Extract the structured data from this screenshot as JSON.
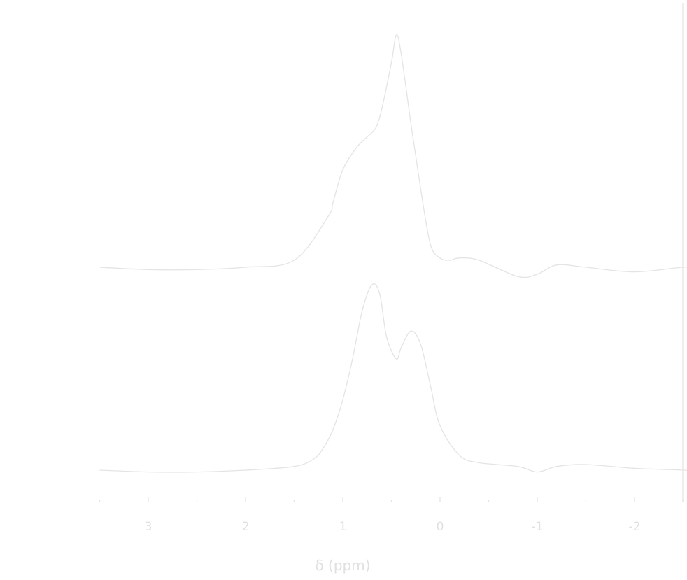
{
  "chart_data": {
    "type": "line",
    "xlabel": "δ (ppm)",
    "ylabel": "",
    "xlim": [
      3.0,
      -3.5
    ],
    "x_reversed": true,
    "x_ticks": [
      3,
      2,
      1,
      0,
      -1,
      -2
    ],
    "x_tick_labels": [
      "3",
      "2",
      "1",
      "0",
      "-1",
      "-2"
    ],
    "x_minor_ticks": [
      3.5,
      2.5,
      1.5,
      0.5,
      -0.5,
      -1.5,
      -2.5,
      -3.0
    ],
    "grid": false,
    "line_color": "#e4e4e4",
    "series": [
      {
        "x": [
          3.5,
          3.0,
          2.5,
          2.0,
          1.5,
          1.15,
          1.1,
          1.0,
          0.85,
          0.7,
          0.65,
          0.6,
          0.5,
          0.45,
          0.4,
          0.3,
          0.2,
          0.1,
          0.0,
          -0.1,
          -0.2,
          -0.4,
          -0.8,
          -1.0,
          -1.2,
          -1.5,
          -2.0,
          -2.5,
          -2.8,
          -3.5
        ],
        "y": [
          0.0,
          -0.01,
          -0.01,
          0.0,
          0.03,
          0.22,
          0.28,
          0.42,
          0.52,
          0.58,
          0.61,
          0.68,
          0.88,
          1.0,
          0.92,
          0.62,
          0.34,
          0.1,
          0.04,
          0.03,
          0.04,
          0.03,
          -0.04,
          -0.03,
          0.01,
          0.0,
          -0.02,
          0.0,
          0.0,
          0.0
        ]
      },
      {
        "x": [
          3.5,
          3.0,
          2.5,
          2.0,
          1.5,
          1.3,
          1.2,
          1.1,
          1.0,
          0.9,
          0.8,
          0.7,
          0.62,
          0.55,
          0.45,
          0.4,
          0.3,
          0.2,
          0.1,
          0.0,
          -0.2,
          -0.4,
          -0.8,
          -1.0,
          -1.2,
          -1.5,
          -2.0,
          -2.5,
          -2.8,
          -3.5
        ],
        "y": [
          0.0,
          -0.01,
          -0.01,
          0.0,
          0.02,
          0.06,
          0.12,
          0.22,
          0.38,
          0.6,
          0.86,
          1.0,
          0.95,
          0.72,
          0.6,
          0.66,
          0.75,
          0.68,
          0.46,
          0.24,
          0.08,
          0.04,
          0.02,
          -0.01,
          0.02,
          0.03,
          0.01,
          0.0,
          -0.01,
          0.0
        ]
      }
    ]
  }
}
